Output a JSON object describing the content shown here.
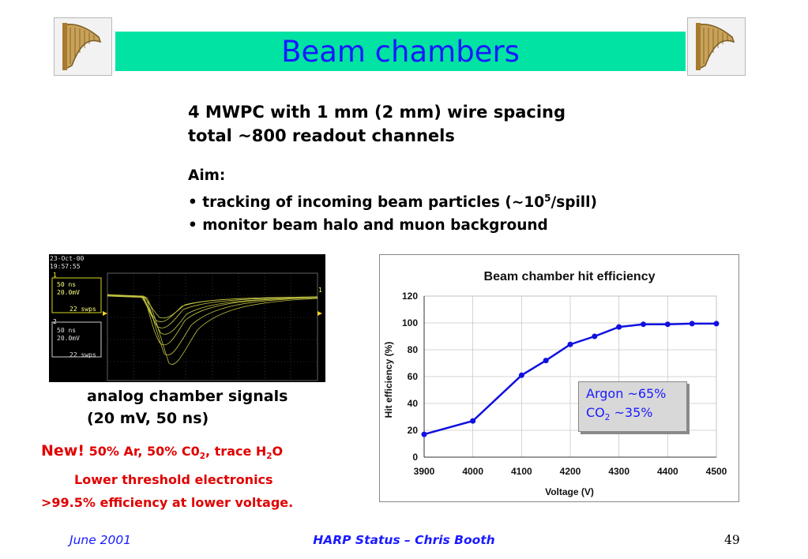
{
  "title": "Beam chambers",
  "intro": {
    "line1": "4 MWPC with 1 mm (2 mm) wire spacing",
    "line2": "total ~800 readout channels"
  },
  "aim": {
    "heading": "Aim:",
    "bullet1_pre": "• tracking of incoming beam particles (~10",
    "bullet1_sup": "5",
    "bullet1_post": "/spill)",
    "bullet2": "• monitor beam halo and muon background"
  },
  "scope": {
    "date": "23-Oct-00",
    "time": "19:57:55",
    "ch1_label": "1",
    "ch1_time": "50 ns",
    "ch1_volt": "20.0mV",
    "ch1_sweeps": "22 swps",
    "ch2_label": "2",
    "ch2_time": "50 ns",
    "ch2_volt": "20.0mV",
    "ch2_sweeps": "22 swps",
    "right_marker": "1"
  },
  "caption": {
    "line1": "analog chamber signals",
    "line2": "(20 mV, 50 ns)"
  },
  "note": {
    "new": "New!",
    "gas_1": " 50% Ar, 50% C0",
    "gas_sub1": "2",
    "gas_2": ", trace H",
    "gas_sub2": "2",
    "gas_3": "O",
    "line2": "Lower threshold electronics",
    "line3": ">99.5% efficiency at lower voltage."
  },
  "chart_data": {
    "type": "line",
    "title": "Beam chamber hit efficiency",
    "xlabel": "Voltage (V)",
    "ylabel": "Hit efficiency (%)",
    "xlim": [
      3900,
      4500
    ],
    "ylim": [
      0,
      120
    ],
    "x_ticks": [
      "3900",
      "4000",
      "4100",
      "4200",
      "4300",
      "4400",
      "4500"
    ],
    "y_ticks": [
      "0",
      "20",
      "40",
      "60",
      "80",
      "100",
      "120"
    ],
    "grid": true,
    "x": [
      3900,
      4000,
      4100,
      4150,
      4200,
      4250,
      4300,
      4350,
      4400,
      4450,
      4500
    ],
    "values": [
      17,
      27,
      61,
      72,
      84,
      90,
      97,
      99,
      99,
      99.5,
      99.5
    ],
    "color": "#1010e0",
    "annotation": {
      "line1": "Argon ~65%",
      "line2_pre": "CO",
      "line2_sub": "2",
      "line2_post": " ~35%"
    }
  },
  "footer": {
    "date": "June 2001",
    "center": "HARP Status – Chris Booth",
    "page": "49"
  }
}
